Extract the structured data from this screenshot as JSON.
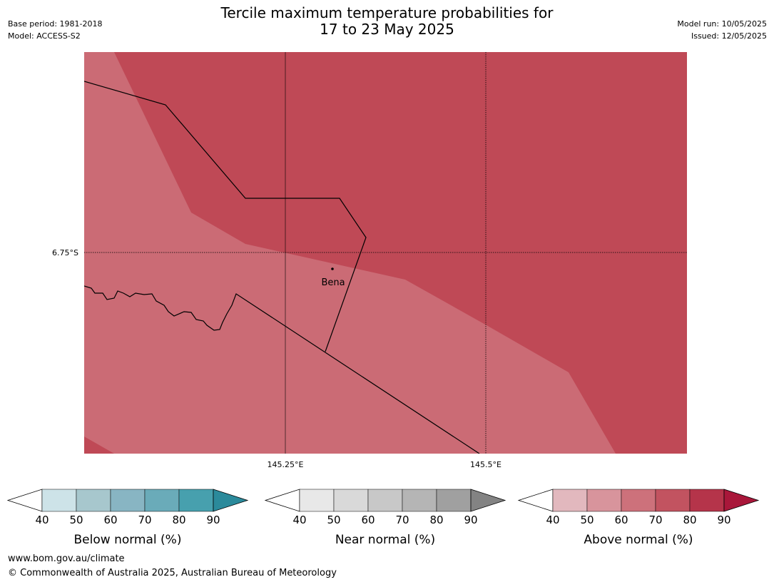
{
  "header": {
    "title_line1": "Tercile maximum temperature probabilities for",
    "title_line2": "17 to 23 May 2025",
    "base_period": "Base period: 1981-2018",
    "model": "Model: ACCESS-S2",
    "model_run": "Model run: 10/05/2025",
    "issued": "Issued: 12/05/2025"
  },
  "map": {
    "lat_label": "6.75°S",
    "lon_labels": [
      "145.25°E",
      "145.5°E"
    ],
    "place": "Bena",
    "region_colors": {
      "light": "#cb6b75",
      "dark": "#bf4956"
    }
  },
  "colorbars": [
    {
      "label": "Below normal (%)",
      "ticks": [
        "40",
        "50",
        "60",
        "70",
        "80",
        "90"
      ],
      "colors": [
        "#ffffff",
        "#cde3e8",
        "#a7c7cd",
        "#88b5c3",
        "#6aabb9",
        "#47a0ae",
        "#2b8a9b"
      ]
    },
    {
      "label": "Near normal (%)",
      "ticks": [
        "40",
        "50",
        "60",
        "70",
        "80",
        "90"
      ],
      "colors": [
        "#ffffff",
        "#e8e8e8",
        "#d9d9d9",
        "#c8c8c8",
        "#b5b5b5",
        "#a0a0a0",
        "#838383"
      ]
    },
    {
      "label": "Above normal (%)",
      "ticks": [
        "40",
        "50",
        "60",
        "70",
        "80",
        "90"
      ],
      "colors": [
        "#ffffff",
        "#e2b8be",
        "#d8949c",
        "#cd717b",
        "#c25360",
        "#b5344a",
        "#a9173a"
      ]
    }
  ],
  "footer": {
    "url": "www.bom.gov.au/climate",
    "copyright": "© Commonwealth of Australia 2025, Australian Bureau of Meteorology"
  }
}
